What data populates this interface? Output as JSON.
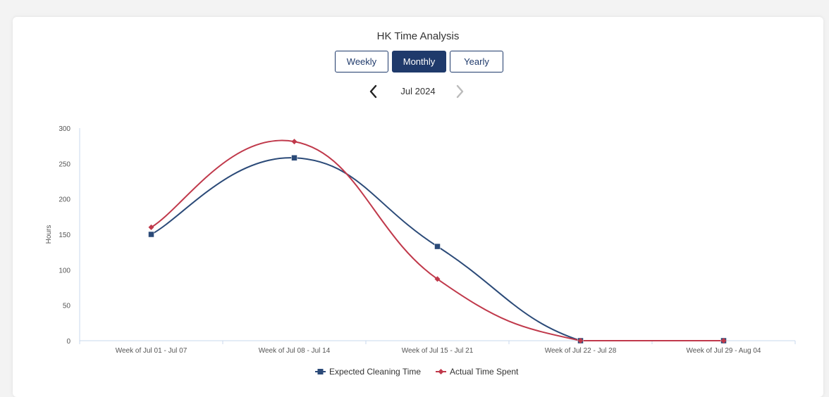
{
  "header": {
    "title": "HK Time Analysis",
    "tabs": [
      {
        "label": "Weekly",
        "active": false
      },
      {
        "label": "Monthly",
        "active": true
      },
      {
        "label": "Yearly",
        "active": false
      }
    ],
    "period": "Jul 2024",
    "prev_icon": "chevron-left-icon",
    "next_icon": "chevron-right-icon"
  },
  "colors": {
    "accent": "#1f3a6b",
    "expected": "#2b4a78",
    "actual": "#c0394b"
  },
  "chart_data": {
    "type": "line",
    "title": "",
    "xlabel": "",
    "ylabel": "Hours",
    "ylim": [
      0,
      300
    ],
    "yticks": [
      0,
      50,
      100,
      150,
      200,
      250,
      300
    ],
    "grid": false,
    "legend": "bottom",
    "smooth": true,
    "categories": [
      "Week of Jul 01 - Jul 07",
      "Week of Jul 08 - Jul 14",
      "Week of Jul 15 - Jul 21",
      "Week of Jul 22 - Jul 28",
      "Week of Jul 29 - Aug 04"
    ],
    "series": [
      {
        "name": "Expected Cleaning Time",
        "values": [
          150,
          258,
          133,
          0,
          0
        ],
        "marker": "square",
        "color": "#2b4a78"
      },
      {
        "name": "Actual Time Spent",
        "values": [
          160,
          281,
          87,
          0,
          0
        ],
        "marker": "diamond",
        "color": "#c0394b"
      }
    ]
  }
}
